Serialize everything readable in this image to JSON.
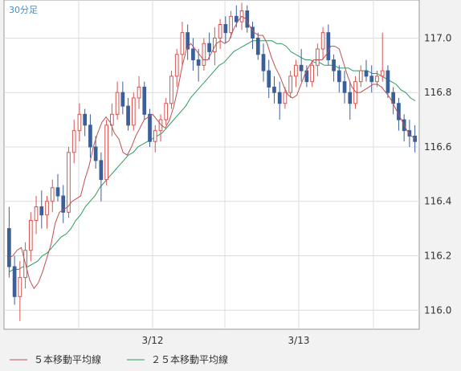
{
  "chart_data": {
    "type": "candlestick",
    "timeframe": "30分足",
    "y_range": [
      115.93,
      117.14
    ],
    "y_ticks": [
      116.0,
      116.2,
      116.4,
      116.6,
      116.8,
      117.0
    ],
    "y_tick_labels": [
      "116.0",
      "116.2",
      "116.4",
      "116.6",
      "116.8",
      "117.0"
    ],
    "x_ticks": [
      "3/12",
      "3/13"
    ],
    "grid": true,
    "colors": {
      "up": "#d9534f",
      "down": "#3b5f9a",
      "ma5": "#c05050",
      "ma25": "#2e9a5e"
    },
    "legend": [
      {
        "name": "５本移動平均線",
        "color": "#c05050"
      },
      {
        "name": "２５本移動平均線",
        "color": "#2e9a5e"
      }
    ],
    "series": {
      "ma5": [
        116.19,
        116.2,
        116.22,
        116.23,
        116.17,
        116.11,
        116.08,
        116.1,
        116.14,
        116.19,
        116.24,
        116.32,
        116.36,
        116.37,
        116.38,
        116.4,
        116.41,
        116.42,
        116.48,
        116.53,
        116.6,
        116.65,
        116.69,
        116.71,
        116.69,
        116.65,
        116.63,
        116.58,
        116.57,
        116.6,
        116.64,
        116.67,
        116.7,
        116.71,
        116.72,
        116.7,
        116.68,
        116.67,
        116.7,
        116.75,
        116.82,
        116.9,
        116.96,
        116.98,
        116.96,
        116.94,
        116.92,
        116.92,
        116.95,
        116.98,
        116.99,
        116.98,
        116.99,
        117.03,
        117.06,
        117.08,
        117.07,
        117.04,
        117.02,
        117.01,
        117.01,
        116.98,
        116.93,
        116.89,
        116.86,
        116.82,
        116.79,
        116.78,
        116.79,
        116.83,
        116.87,
        116.9,
        116.92,
        116.92,
        116.92,
        116.94,
        116.97,
        116.97,
        116.96,
        116.91,
        116.86,
        116.82,
        116.8,
        116.8,
        116.81,
        116.82,
        116.83,
        116.83,
        116.82,
        116.8,
        116.78,
        116.75,
        116.72,
        116.69,
        116.66,
        116.64,
        116.63
      ],
      "ma25": [
        116.14,
        116.15,
        116.15,
        116.16,
        116.16,
        116.17,
        116.18,
        116.2,
        116.21,
        116.23,
        116.25,
        116.27,
        116.28,
        116.3,
        116.33,
        116.35,
        116.38,
        116.4,
        116.42,
        116.45,
        116.47,
        116.49,
        116.51,
        116.53,
        116.55,
        116.57,
        116.58,
        116.6,
        116.61,
        116.62,
        116.63,
        116.64,
        116.65,
        116.67,
        116.69,
        116.71,
        116.73,
        116.75,
        116.78,
        116.8,
        116.82,
        116.84,
        116.86,
        116.88,
        116.9,
        116.91,
        116.93,
        116.95,
        116.96,
        116.97,
        116.98,
        116.99,
        116.99,
        116.99,
        116.99,
        116.99,
        116.98,
        116.98,
        116.97,
        116.95,
        116.94,
        116.93,
        116.92,
        116.92,
        116.91,
        116.91,
        116.9,
        116.9,
        116.9,
        116.89,
        116.89,
        116.89,
        116.88,
        116.88,
        116.88,
        116.88,
        116.87,
        116.87,
        116.86,
        116.85,
        116.84,
        116.83,
        116.81,
        116.8,
        116.78,
        116.77
      ]
    },
    "ohlc": [
      [
        116.3,
        116.38,
        116.12,
        116.16
      ],
      [
        116.16,
        116.2,
        116.02,
        116.05
      ],
      [
        116.05,
        116.18,
        115.96,
        116.12
      ],
      [
        116.12,
        116.25,
        116.08,
        116.22
      ],
      [
        116.22,
        116.36,
        116.18,
        116.33
      ],
      [
        116.33,
        116.42,
        116.28,
        116.38
      ],
      [
        116.38,
        116.44,
        116.3,
        116.35
      ],
      [
        116.35,
        116.42,
        116.3,
        116.4
      ],
      [
        116.4,
        116.48,
        116.36,
        116.45
      ],
      [
        116.45,
        116.5,
        116.4,
        116.42
      ],
      [
        116.42,
        116.46,
        116.32,
        116.36
      ],
      [
        116.36,
        116.6,
        116.34,
        116.58
      ],
      [
        116.58,
        116.7,
        116.54,
        116.66
      ],
      [
        116.66,
        116.76,
        116.62,
        116.72
      ],
      [
        116.72,
        116.74,
        116.64,
        116.68
      ],
      [
        116.68,
        116.72,
        116.56,
        116.6
      ],
      [
        116.6,
        116.64,
        116.52,
        116.55
      ],
      [
        116.55,
        116.58,
        116.4,
        116.48
      ],
      [
        116.48,
        116.7,
        116.46,
        116.68
      ],
      [
        116.68,
        116.76,
        116.64,
        116.72
      ],
      [
        116.72,
        116.84,
        116.7,
        116.8
      ],
      [
        116.8,
        116.84,
        116.72,
        116.75
      ],
      [
        116.75,
        116.78,
        116.66,
        116.68
      ],
      [
        116.68,
        116.8,
        116.66,
        116.78
      ],
      [
        116.78,
        116.86,
        116.74,
        116.82
      ],
      [
        116.82,
        116.84,
        116.7,
        116.72
      ],
      [
        116.72,
        116.74,
        116.6,
        116.62
      ],
      [
        116.62,
        116.68,
        116.58,
        116.66
      ],
      [
        116.66,
        116.72,
        116.62,
        116.7
      ],
      [
        116.7,
        116.78,
        116.68,
        116.76
      ],
      [
        116.76,
        116.88,
        116.74,
        116.86
      ],
      [
        116.86,
        116.96,
        116.82,
        116.94
      ],
      [
        116.94,
        117.06,
        116.9,
        117.02
      ],
      [
        117.02,
        117.05,
        116.92,
        116.96
      ],
      [
        116.96,
        117.0,
        116.88,
        116.92
      ],
      [
        116.92,
        116.96,
        116.84,
        116.9
      ],
      [
        116.9,
        117.0,
        116.88,
        116.98
      ],
      [
        116.98,
        117.02,
        116.92,
        116.95
      ],
      [
        116.95,
        117.04,
        116.9,
        117.0
      ],
      [
        117.0,
        117.07,
        116.96,
        117.05
      ],
      [
        117.05,
        117.08,
        116.98,
        117.02
      ],
      [
        117.02,
        117.1,
        117.0,
        117.08
      ],
      [
        117.08,
        117.12,
        117.04,
        117.06
      ],
      [
        117.06,
        117.13,
        117.03,
        117.1
      ],
      [
        117.1,
        117.12,
        117.02,
        117.04
      ],
      [
        117.04,
        117.06,
        116.96,
        117.0
      ],
      [
        117.0,
        117.02,
        116.92,
        116.94
      ],
      [
        116.94,
        116.98,
        116.84,
        116.88
      ],
      [
        116.88,
        116.92,
        116.78,
        116.82
      ],
      [
        116.82,
        116.86,
        116.76,
        116.8
      ],
      [
        116.8,
        116.84,
        116.7,
        116.76
      ],
      [
        116.76,
        116.82,
        116.74,
        116.8
      ],
      [
        116.8,
        116.88,
        116.78,
        116.86
      ],
      [
        116.86,
        116.92,
        116.82,
        116.9
      ],
      [
        116.9,
        116.96,
        116.84,
        116.88
      ],
      [
        116.88,
        116.9,
        116.82,
        116.84
      ],
      [
        116.84,
        116.92,
        116.82,
        116.9
      ],
      [
        116.9,
        116.98,
        116.86,
        116.96
      ],
      [
        116.96,
        117.04,
        116.92,
        117.02
      ],
      [
        117.02,
        117.05,
        116.9,
        116.92
      ],
      [
        116.92,
        116.94,
        116.84,
        116.88
      ],
      [
        116.88,
        116.9,
        116.8,
        116.84
      ],
      [
        116.84,
        116.88,
        116.76,
        116.8
      ],
      [
        116.8,
        116.84,
        116.7,
        116.76
      ],
      [
        116.76,
        116.86,
        116.74,
        116.84
      ],
      [
        116.84,
        116.9,
        116.82,
        116.88
      ],
      [
        116.88,
        116.92,
        116.84,
        116.86
      ],
      [
        116.86,
        116.9,
        116.8,
        116.84
      ],
      [
        116.84,
        116.88,
        116.82,
        116.86
      ],
      [
        116.86,
        117.02,
        116.84,
        116.88
      ],
      [
        116.88,
        116.9,
        116.78,
        116.8
      ],
      [
        116.8,
        116.82,
        116.72,
        116.76
      ],
      [
        116.76,
        116.78,
        116.66,
        116.7
      ],
      [
        116.7,
        116.72,
        116.62,
        116.66
      ],
      [
        116.66,
        116.7,
        116.6,
        116.64
      ],
      [
        116.64,
        116.68,
        116.58,
        116.62
      ]
    ]
  }
}
